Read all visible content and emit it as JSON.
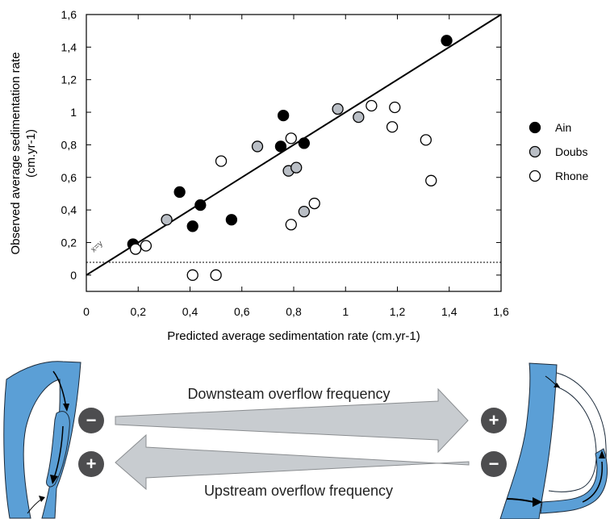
{
  "chart_data": {
    "type": "scatter",
    "xlabel": "Predicted average sedimentation rate  (cm.yr-1)",
    "ylabel": "Observed average sedimentation rate",
    "ylabel_unit": "(cm.yr-1)",
    "xlim": [
      0,
      1.6
    ],
    "ylim": [
      -0.1,
      1.6
    ],
    "x_ticks": [
      {
        "v": 0,
        "label": "0"
      },
      {
        "v": 0.2,
        "label": "0,2"
      },
      {
        "v": 0.4,
        "label": "0,4"
      },
      {
        "v": 0.6,
        "label": "0,6"
      },
      {
        "v": 0.8,
        "label": "0,8"
      },
      {
        "v": 1.0,
        "label": "1"
      },
      {
        "v": 1.2,
        "label": "1,2"
      },
      {
        "v": 1.4,
        "label": "1,4"
      },
      {
        "v": 1.6,
        "label": "1,6"
      }
    ],
    "y_ticks": [
      {
        "v": 0,
        "label": "0"
      },
      {
        "v": 0.2,
        "label": "0,2"
      },
      {
        "v": 0.4,
        "label": "0,4"
      },
      {
        "v": 0.6,
        "label": "0,6"
      },
      {
        "v": 0.8,
        "label": "0,8"
      },
      {
        "v": 1.0,
        "label": "1"
      },
      {
        "v": 1.2,
        "label": "1,2"
      },
      {
        "v": 1.4,
        "label": "1,4"
      },
      {
        "v": 1.6,
        "label": "1,6"
      }
    ],
    "reference_line": {
      "label": "x=y",
      "from": [
        0,
        0
      ],
      "to": [
        1.6,
        1.6
      ]
    },
    "zero_line": true,
    "grid": false,
    "legend_position": "right",
    "series": [
      {
        "name": "Ain",
        "color": "#000000",
        "points": [
          [
            0.18,
            0.19
          ],
          [
            0.36,
            0.51
          ],
          [
            0.41,
            0.3
          ],
          [
            0.44,
            0.43
          ],
          [
            0.56,
            0.34
          ],
          [
            0.75,
            0.79
          ],
          [
            0.76,
            0.98
          ],
          [
            0.84,
            0.81
          ],
          [
            1.39,
            1.44
          ]
        ]
      },
      {
        "name": "Doubs",
        "color": "#b9bec5",
        "points": [
          [
            0.31,
            0.34
          ],
          [
            0.66,
            0.79
          ],
          [
            0.78,
            0.64
          ],
          [
            0.81,
            0.66
          ],
          [
            0.84,
            0.39
          ],
          [
            0.97,
            1.02
          ],
          [
            1.05,
            0.97
          ]
        ]
      },
      {
        "name": "Rhone",
        "color": "#ffffff",
        "points": [
          [
            0.19,
            0.16
          ],
          [
            0.23,
            0.18
          ],
          [
            0.41,
            0.0
          ],
          [
            0.5,
            0.0
          ],
          [
            0.52,
            0.7
          ],
          [
            0.79,
            0.31
          ],
          [
            0.79,
            0.84
          ],
          [
            0.88,
            0.44
          ],
          [
            1.1,
            1.04
          ],
          [
            1.18,
            0.91
          ],
          [
            1.19,
            1.03
          ],
          [
            1.31,
            0.83
          ],
          [
            1.33,
            0.58
          ]
        ]
      }
    ]
  },
  "diagram": {
    "top_arrow_label": "Downsteam overflow frequency",
    "bottom_arrow_label": "Upstream overflow frequency",
    "left_top_sign": "−",
    "right_top_sign": "+",
    "left_bottom_sign": "+",
    "right_bottom_sign": "−",
    "channel_color": "#5b9fd6",
    "sign_color": "#4d4d4f",
    "arrow_fill": "#c8ccd0"
  }
}
